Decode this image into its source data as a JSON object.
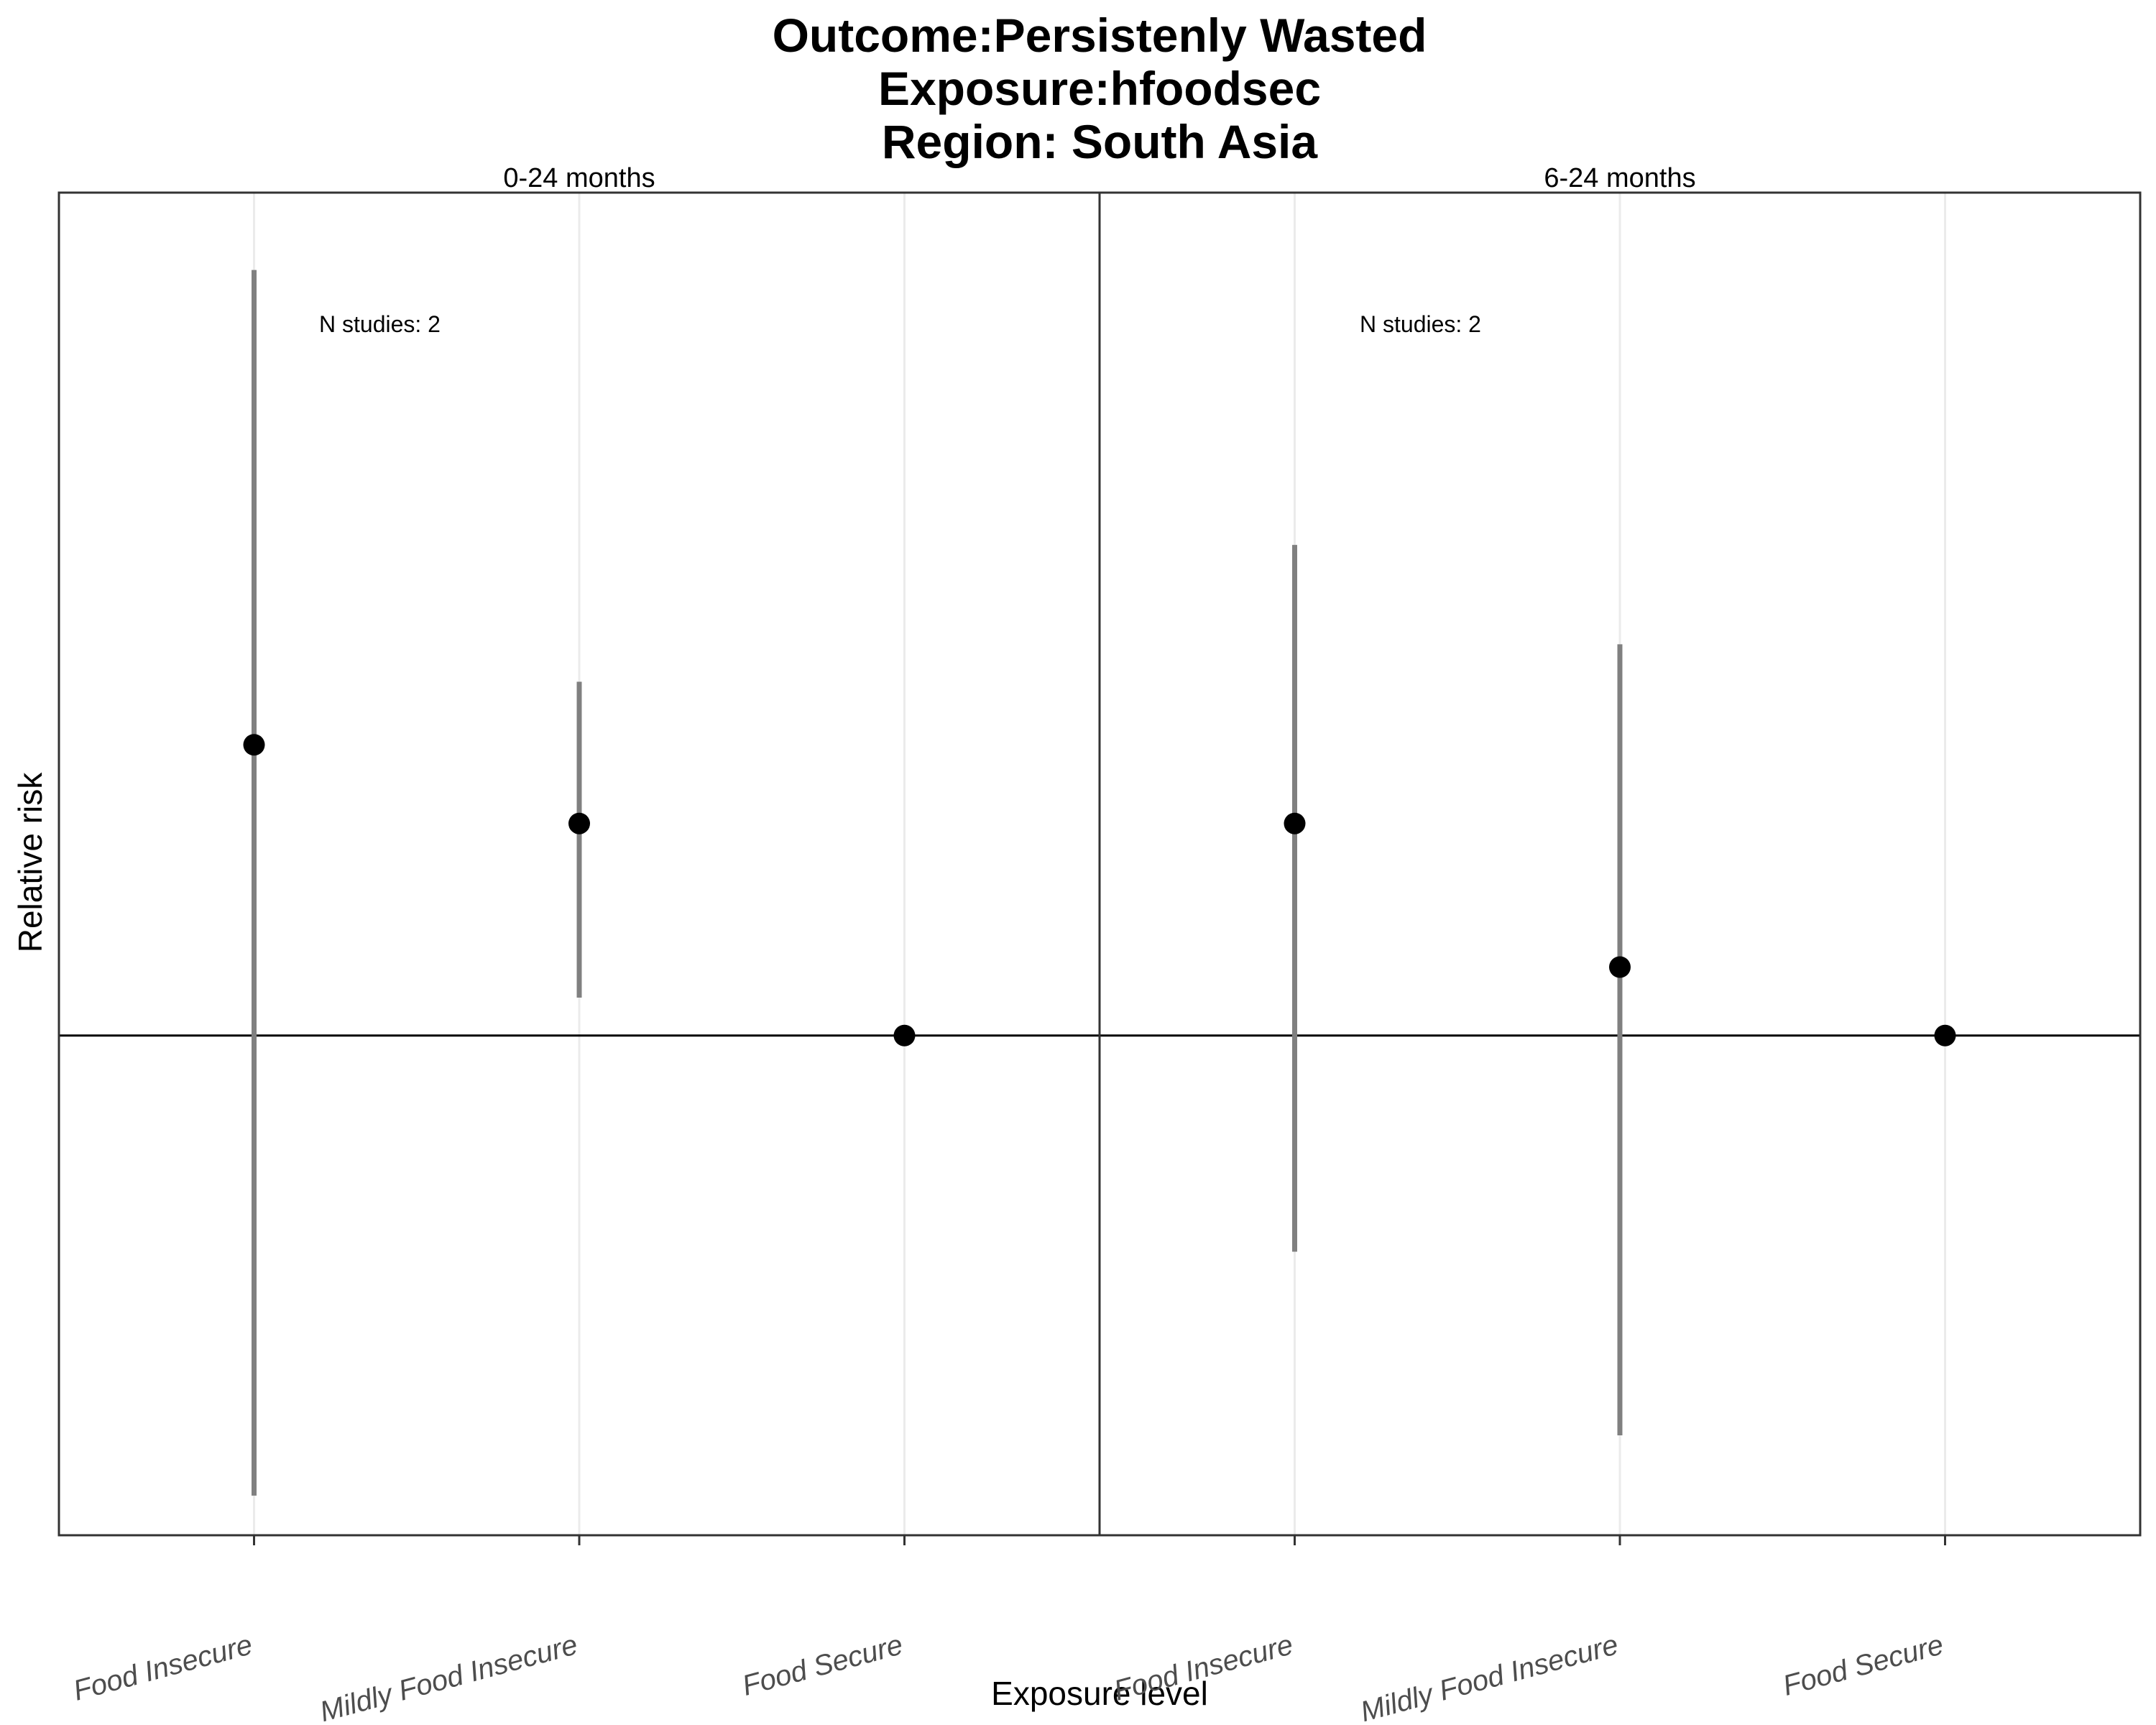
{
  "chart_data": {
    "type": "scatter",
    "subtype": "point-range",
    "title_lines": [
      "Outcome:Persistenly Wasted",
      "Exposure:hfoodsec",
      "Region: South Asia"
    ],
    "xlabel": "Exposure level",
    "ylabel": "Relative risk",
    "categories": [
      "Food Insecure",
      "Mildly Food Insecure",
      "Food Secure"
    ],
    "reference_line": 1,
    "y_scale": "log",
    "ylim": [
      0.41,
      4.5
    ],
    "grid": "vertical-major",
    "point_color": "#000000",
    "interval_color": "#808080",
    "panels": [
      {
        "label": "0-24 months",
        "annotation": "N studies: 2",
        "estimates": [
          {
            "category": "Food Insecure",
            "rr": 1.68,
            "ci_lower": 0.44,
            "ci_upper": 3.92
          },
          {
            "category": "Mildly Food Insecure",
            "rr": 1.46,
            "ci_lower": 1.07,
            "ci_upper": 1.88
          },
          {
            "category": "Food Secure",
            "rr": 1.0
          }
        ]
      },
      {
        "label": "6-24 months",
        "annotation": "N studies: 2",
        "estimates": [
          {
            "category": "Food Insecure",
            "rr": 1.46,
            "ci_lower": 0.68,
            "ci_upper": 2.4
          },
          {
            "category": "Mildly Food Insecure",
            "rr": 1.13,
            "ci_lower": 0.49,
            "ci_upper": 2.01
          },
          {
            "category": "Food Secure",
            "rr": 1.0
          }
        ]
      }
    ]
  }
}
